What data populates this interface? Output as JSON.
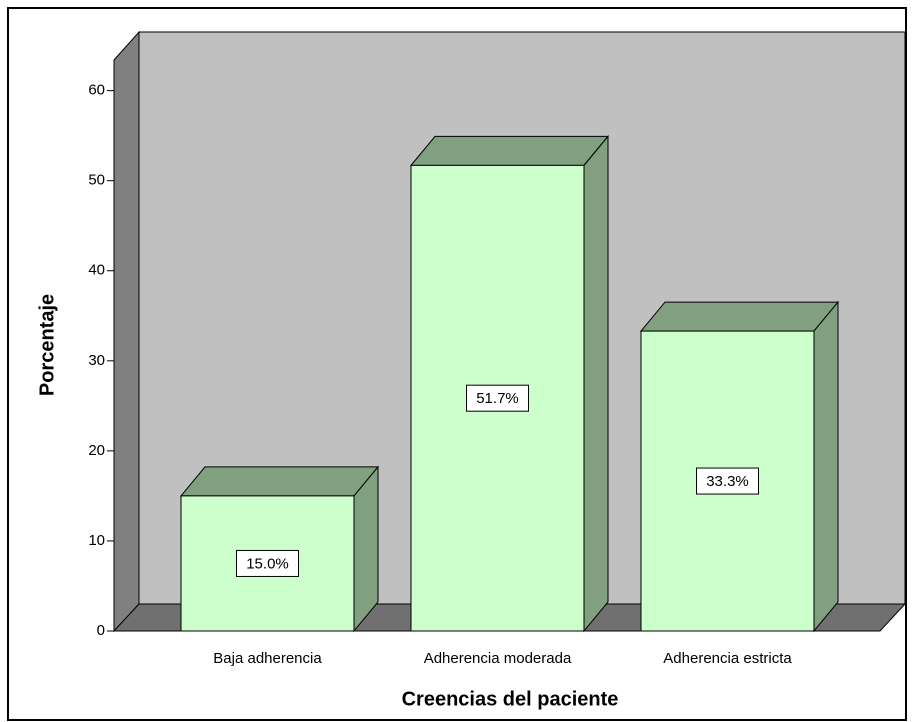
{
  "chart_data": {
    "type": "bar3d",
    "x_label": "Creencias del paciente",
    "y_label": "Porcentaje",
    "categories": [
      "Baja adherencia",
      "Adherencia moderada",
      "Adherencia estricta"
    ],
    "values": [
      15.0,
      51.7,
      33.3
    ],
    "value_labels": [
      "15.0%",
      "51.7%",
      "33.3%"
    ],
    "color": "#ccffcc",
    "ylim": [
      0,
      63.4
    ],
    "yticks": [
      0,
      10,
      20,
      30,
      40,
      50,
      60
    ]
  }
}
